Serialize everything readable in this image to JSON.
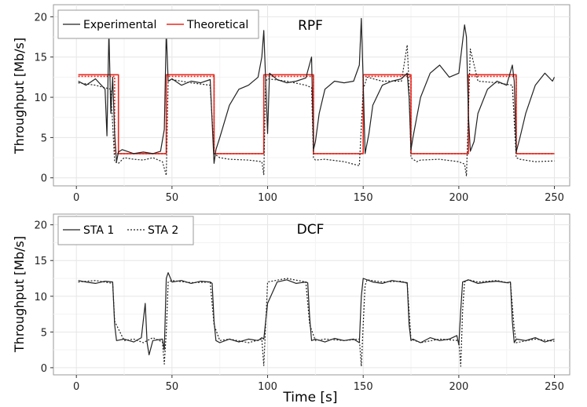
{
  "chart_data": [
    {
      "type": "line",
      "title": "RPF",
      "xlabel": "",
      "ylabel": "Throughput [Mb/s]",
      "xlim": [
        -12,
        258
      ],
      "ylim": [
        -1,
        21.5
      ],
      "xticks": [
        0,
        50,
        100,
        150,
        200,
        250
      ],
      "yticks": [
        0,
        5,
        10,
        15,
        20
      ],
      "grid": true,
      "legend_position": "top-left",
      "legend": [
        {
          "label": "Experimental",
          "color": "#222222",
          "dash": "solid"
        },
        {
          "label": "Theoretical",
          "color": "#e8281e",
          "dash": "solid"
        }
      ],
      "series": [
        {
          "name": "Theoretical",
          "color": "#e8281e",
          "style": "solid",
          "x": [
            1,
            22,
            22,
            47,
            47,
            72,
            72,
            98,
            98,
            124,
            124,
            150,
            150,
            175,
            175,
            205,
            205,
            230,
            230,
            250
          ],
          "y": [
            12.8,
            12.8,
            3.0,
            3.0,
            12.8,
            12.8,
            3.0,
            3.0,
            12.8,
            12.8,
            3.0,
            3.0,
            12.8,
            12.8,
            3.0,
            3.0,
            12.8,
            12.8,
            3.0,
            3.0
          ]
        },
        {
          "name": "Theoretical (STA 2)",
          "color": "#e8281e",
          "style": "dotted",
          "x": [
            1,
            20,
            20,
            47,
            47,
            72,
            72,
            98,
            98,
            124,
            124,
            150,
            150,
            175,
            175,
            205,
            205,
            230,
            230,
            250
          ],
          "y": [
            12.6,
            12.6,
            3.0,
            3.0,
            12.6,
            12.6,
            3.0,
            3.0,
            12.6,
            12.6,
            3.0,
            3.0,
            12.6,
            12.6,
            3.0,
            3.0,
            12.6,
            12.6,
            3.0,
            3.0
          ]
        },
        {
          "name": "Experimental",
          "color": "#222222",
          "style": "solid",
          "x": [
            1,
            5,
            10,
            15,
            16,
            17,
            18,
            19,
            20,
            21,
            22,
            24,
            30,
            35,
            40,
            44,
            46,
            47,
            48,
            50,
            55,
            60,
            65,
            70,
            72,
            73,
            75,
            80,
            85,
            90,
            95,
            97,
            98,
            99,
            100,
            101,
            105,
            110,
            115,
            120,
            123,
            124,
            125,
            127,
            130,
            135,
            140,
            145,
            148,
            149,
            150,
            151,
            153,
            155,
            160,
            165,
            170,
            173,
            174,
            175,
            176,
            178,
            180,
            185,
            190,
            195,
            200,
            203,
            204,
            205,
            206,
            208,
            210,
            215,
            220,
            225,
            228,
            229,
            230,
            232,
            235,
            240,
            245,
            249,
            250
          ],
          "y": [
            12.0,
            11.5,
            12.3,
            11.0,
            5.2,
            18.2,
            8.0,
            12.5,
            5.5,
            2.0,
            3.2,
            3.5,
            3.0,
            3.2,
            3.0,
            3.3,
            6.0,
            18.2,
            12.0,
            12.3,
            11.5,
            12.0,
            11.8,
            12.2,
            1.8,
            3.5,
            5.0,
            9.0,
            11.0,
            11.5,
            12.5,
            15.0,
            18.3,
            12.0,
            5.5,
            13.0,
            12.2,
            11.8,
            12.0,
            12.4,
            15.0,
            3.5,
            4.5,
            8.0,
            11.0,
            12.0,
            11.8,
            12.0,
            14.0,
            19.8,
            12.0,
            3.0,
            5.5,
            9.0,
            11.5,
            12.0,
            12.3,
            13.0,
            10.0,
            3.5,
            5.0,
            7.5,
            10.0,
            13.0,
            14.0,
            12.5,
            13.0,
            19.0,
            17.5,
            8.0,
            3.3,
            4.5,
            8.0,
            11.0,
            12.0,
            11.5,
            14.0,
            12.0,
            3.2,
            5.0,
            8.0,
            11.5,
            13.0,
            12.0,
            12.5
          ]
        },
        {
          "name": "Experimental (STA 2)",
          "color": "#222222",
          "style": "dotted",
          "x": [
            1,
            10,
            18,
            20,
            22,
            25,
            30,
            35,
            40,
            45,
            47,
            48,
            50,
            60,
            70,
            72,
            75,
            80,
            90,
            97,
            98,
            99,
            100,
            110,
            120,
            123,
            124,
            125,
            130,
            140,
            148,
            150,
            152,
            160,
            170,
            173,
            174,
            175,
            178,
            180,
            190,
            200,
            203,
            204,
            206,
            210,
            220,
            228,
            230,
            232,
            240,
            250
          ],
          "y": [
            11.8,
            11.5,
            11.0,
            2.0,
            1.8,
            2.5,
            2.3,
            2.2,
            2.5,
            2.0,
            0.3,
            12.0,
            12.2,
            11.8,
            11.5,
            3.0,
            2.5,
            2.3,
            2.2,
            2.0,
            0.4,
            12.0,
            12.3,
            12.0,
            11.5,
            11.2,
            2.5,
            2.2,
            2.3,
            2.0,
            1.5,
            11.0,
            12.5,
            12.0,
            12.0,
            16.5,
            11.5,
            2.5,
            2.0,
            2.2,
            2.3,
            2.0,
            1.7,
            0.2,
            16.0,
            12.0,
            11.8,
            11.5,
            2.5,
            2.3,
            2.0,
            2.1
          ]
        }
      ]
    },
    {
      "type": "line",
      "title": "DCF",
      "xlabel": "Time [s]",
      "ylabel": "Throughput [Mb/s]",
      "xlim": [
        -12,
        258
      ],
      "ylim": [
        -1,
        21.5
      ],
      "xticks": [
        0,
        50,
        100,
        150,
        200,
        250
      ],
      "yticks": [
        0,
        5,
        10,
        15,
        20
      ],
      "grid": true,
      "legend_position": "top-left",
      "legend": [
        {
          "label": "STA 1",
          "color": "#222222",
          "dash": "solid"
        },
        {
          "label": "STA 2",
          "color": "#222222",
          "dash": "dotted"
        }
      ],
      "series": [
        {
          "name": "STA 1",
          "color": "#222222",
          "style": "solid",
          "x": [
            1,
            5,
            10,
            15,
            19,
            20,
            21,
            25,
            30,
            34,
            36,
            37,
            38,
            40,
            45,
            46,
            47,
            48,
            50,
            55,
            60,
            65,
            70,
            71,
            72,
            73,
            75,
            80,
            85,
            90,
            95,
            97,
            98,
            100,
            105,
            110,
            115,
            120,
            121,
            122,
            123,
            125,
            130,
            135,
            140,
            145,
            148,
            149,
            150,
            155,
            160,
            165,
            170,
            173,
            174,
            175,
            176,
            180,
            185,
            190,
            195,
            199,
            200,
            201,
            202,
            205,
            210,
            215,
            220,
            225,
            227,
            228,
            229,
            230,
            235,
            240,
            245,
            250
          ],
          "y": [
            12.2,
            12.0,
            11.8,
            12.1,
            12.0,
            6.0,
            3.8,
            4.0,
            3.6,
            4.2,
            9.0,
            3.5,
            1.8,
            3.8,
            4.0,
            2.5,
            12.5,
            13.3,
            12.0,
            12.2,
            11.8,
            12.1,
            12.0,
            11.8,
            6.5,
            3.8,
            3.5,
            4.0,
            3.6,
            4.0,
            3.8,
            4.2,
            4.0,
            9.0,
            12.0,
            12.3,
            11.8,
            12.0,
            11.9,
            7.0,
            3.8,
            4.0,
            3.6,
            4.1,
            3.8,
            4.0,
            3.5,
            10.0,
            12.5,
            12.0,
            11.8,
            12.2,
            12.0,
            11.9,
            6.0,
            3.8,
            4.0,
            3.5,
            4.2,
            3.8,
            4.0,
            4.5,
            3.2,
            8.0,
            12.0,
            12.3,
            11.8,
            12.0,
            12.1,
            11.9,
            12.0,
            6.5,
            3.5,
            4.0,
            3.8,
            4.2,
            3.6,
            4.0
          ]
        },
        {
          "name": "STA 2",
          "color": "#222222",
          "style": "dotted",
          "x": [
            1,
            10,
            19,
            20,
            25,
            30,
            35,
            40,
            45,
            46,
            47,
            48,
            50,
            60,
            70,
            72,
            75,
            80,
            90,
            97,
            98,
            99,
            100,
            110,
            120,
            122,
            125,
            130,
            140,
            148,
            149,
            150,
            151,
            152,
            160,
            170,
            173,
            175,
            180,
            190,
            200,
            201,
            202,
            203,
            205,
            210,
            220,
            227,
            229,
            230,
            240,
            250
          ],
          "y": [
            12.0,
            12.2,
            11.8,
            6.5,
            3.8,
            4.0,
            3.5,
            4.2,
            3.6,
            0.5,
            5.0,
            12.0,
            12.2,
            11.9,
            12.0,
            6.0,
            3.8,
            4.0,
            3.5,
            4.0,
            0.3,
            6.0,
            12.0,
            12.5,
            12.0,
            6.0,
            3.8,
            4.0,
            3.8,
            4.0,
            0.2,
            6.0,
            11.5,
            12.3,
            12.0,
            12.1,
            11.8,
            4.0,
            3.5,
            4.0,
            3.8,
            0.2,
            8.0,
            12.0,
            12.3,
            12.0,
            12.2,
            11.8,
            5.5,
            3.5,
            4.0,
            3.7
          ]
        }
      ]
    }
  ]
}
